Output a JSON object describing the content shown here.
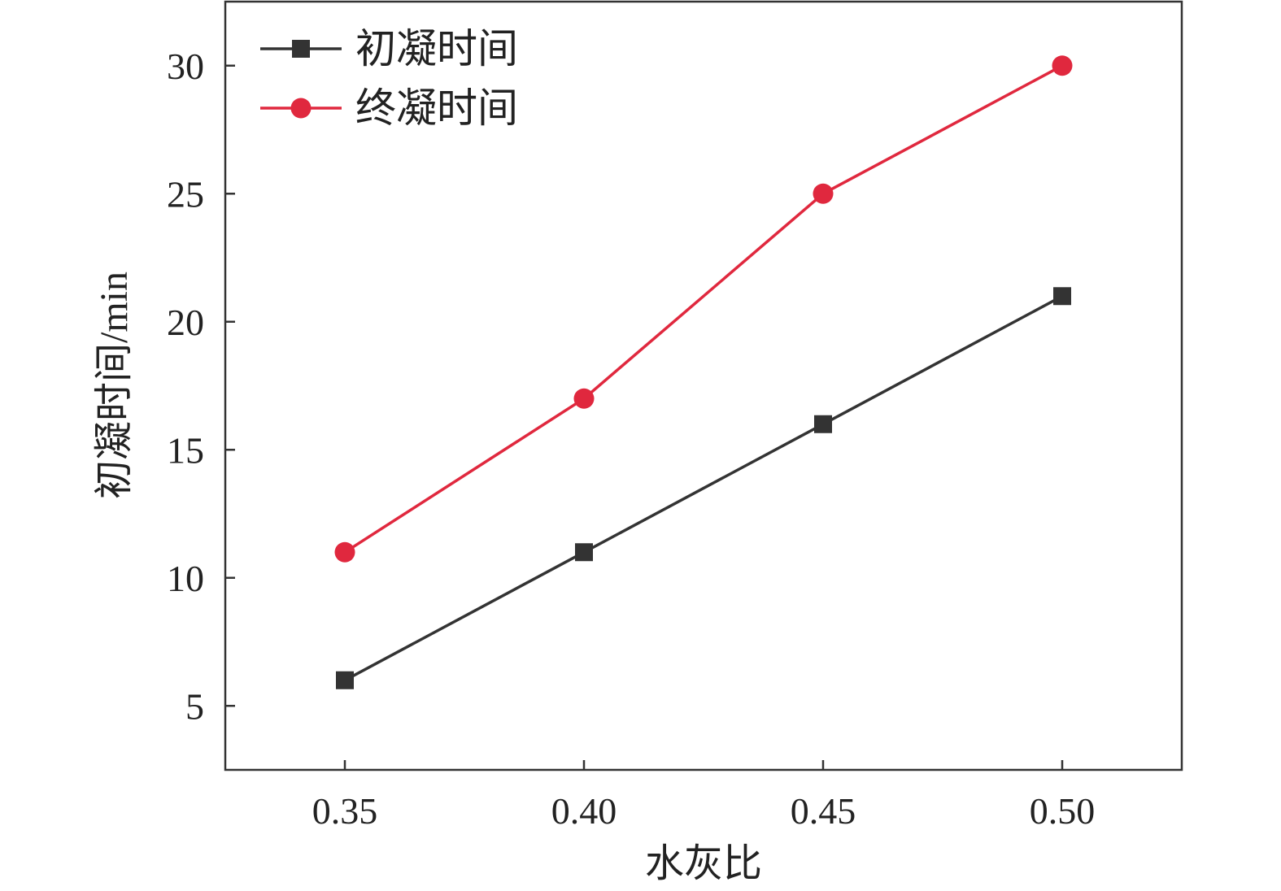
{
  "chart_data": {
    "type": "line",
    "title": "",
    "xlabel": "水灰比",
    "ylabel": "初凝时间/min",
    "x": [
      0.35,
      0.4,
      0.45,
      0.5
    ],
    "x_tick_labels": [
      "0.35",
      "0.40",
      "0.45",
      "0.50"
    ],
    "xlim": [
      0.325,
      0.525
    ],
    "ylim": [
      2.5,
      32.5
    ],
    "y_ticks": [
      5,
      10,
      15,
      20,
      25,
      30
    ],
    "y_tick_labels": [
      "5",
      "10",
      "15",
      "20",
      "25",
      "30"
    ],
    "grid": false,
    "legend_position": "top-left",
    "series": [
      {
        "name": "初凝时间",
        "marker": "square",
        "color": "#333333",
        "values": [
          6,
          11,
          16,
          21
        ]
      },
      {
        "name": "终凝时间",
        "marker": "circle",
        "color": "#e0283e",
        "values": [
          11,
          17,
          25,
          30
        ]
      }
    ]
  }
}
